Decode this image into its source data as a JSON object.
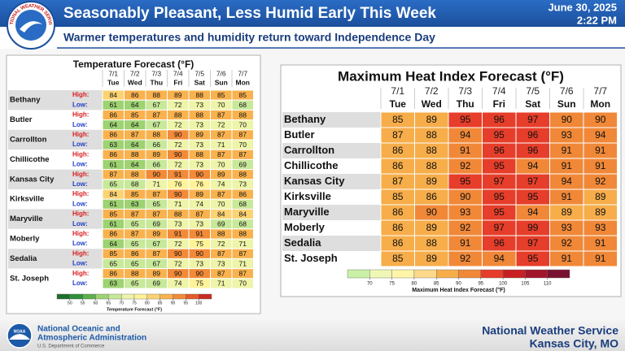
{
  "header": {
    "title": "Seasonably Pleasant, Less Humid Early This Week",
    "subtitle": "Warmer temperatures and humidity return toward Independence Day",
    "date": "June 30, 2025",
    "time": "2:22 PM",
    "logo_text": "NATIONAL WEATHER SERVICE"
  },
  "footer": {
    "noaa_logo": "NOAA",
    "agency_line1": "National Oceanic and",
    "agency_line2": "Atmospheric Administration",
    "department": "U.S. Department of Commerce",
    "office_line1": "National Weather Service",
    "office_line2": "Kansas City, MO"
  },
  "chart_data": [
    {
      "type": "table",
      "title": "Temperature Forecast (°F)",
      "dates": [
        "7/1",
        "7/2",
        "7/3",
        "7/4",
        "7/5",
        "7/6",
        "7/7"
      ],
      "days": [
        "Tue",
        "Wed",
        "Thu",
        "Fri",
        "Sat",
        "Sun",
        "Mon"
      ],
      "row_labels": [
        "High:",
        "Low:"
      ],
      "row_label_colors": [
        "#d81e1e",
        "#1e3cc8"
      ],
      "rows": [
        {
          "name": "Bethany",
          "values": [
            [
              84,
              86,
              88,
              89,
              88,
              85,
              85
            ],
            [
              61,
              64,
              67,
              72,
              73,
              70,
              68
            ]
          ]
        },
        {
          "name": "Butler",
          "values": [
            [
              86,
              85,
              87,
              88,
              88,
              87,
              88
            ],
            [
              64,
              64,
              67,
              72,
              73,
              72,
              70
            ]
          ]
        },
        {
          "name": "Carrollton",
          "values": [
            [
              86,
              87,
              88,
              90,
              89,
              87,
              87
            ],
            [
              63,
              64,
              66,
              72,
              73,
              71,
              70
            ]
          ]
        },
        {
          "name": "Chillicothe",
          "values": [
            [
              86,
              88,
              89,
              90,
              88,
              87,
              87
            ],
            [
              61,
              64,
              66,
              72,
              73,
              70,
              69
            ]
          ]
        },
        {
          "name": "Kansas City",
          "values": [
            [
              87,
              88,
              90,
              91,
              90,
              89,
              88
            ],
            [
              65,
              68,
              71,
              76,
              76,
              74,
              73
            ]
          ]
        },
        {
          "name": "Kirksville",
          "values": [
            [
              84,
              85,
              87,
              90,
              89,
              87,
              86
            ],
            [
              61,
              63,
              65,
              71,
              74,
              70,
              68
            ]
          ]
        },
        {
          "name": "Maryville",
          "values": [
            [
              85,
              87,
              87,
              88,
              87,
              84,
              84
            ],
            [
              61,
              65,
              69,
              73,
              73,
              69,
              68
            ]
          ]
        },
        {
          "name": "Moberly",
          "values": [
            [
              86,
              87,
              89,
              91,
              91,
              88,
              88
            ],
            [
              64,
              65,
              67,
              72,
              75,
              72,
              71
            ]
          ]
        },
        {
          "name": "Sedalia",
          "values": [
            [
              85,
              86,
              87,
              90,
              90,
              87,
              87
            ],
            [
              65,
              65,
              67,
              72,
              73,
              73,
              71
            ]
          ]
        },
        {
          "name": "St. Joseph",
          "values": [
            [
              86,
              88,
              89,
              90,
              90,
              87,
              87
            ],
            [
              63,
              65,
              69,
              74,
              75,
              71,
              70
            ]
          ]
        }
      ],
      "colorbar": {
        "label": "Temperature Forecast (°F)",
        "ticks": [
          50,
          55,
          60,
          65,
          70,
          75,
          80,
          85,
          90,
          95,
          100
        ],
        "colors": [
          "#1b6e2a",
          "#2f8f3a",
          "#5cb04a",
          "#9ed272",
          "#c8e89a",
          "#eef4a8",
          "#fff39a",
          "#fcd373",
          "#f9b24e",
          "#f28a38",
          "#e55a2a",
          "#c92a22"
        ]
      }
    },
    {
      "type": "table",
      "title": "Maximum Heat Index Forecast (°F)",
      "dates": [
        "7/1",
        "7/2",
        "7/3",
        "7/4",
        "7/5",
        "7/6",
        "7/7"
      ],
      "days": [
        "Tue",
        "Wed",
        "Thu",
        "Fri",
        "Sat",
        "Sun",
        "Mon"
      ],
      "rows": [
        {
          "name": "Bethany",
          "values": [
            85,
            89,
            95,
            96,
            97,
            90,
            90
          ]
        },
        {
          "name": "Butler",
          "values": [
            87,
            88,
            94,
            95,
            96,
            93,
            94
          ]
        },
        {
          "name": "Carrollton",
          "values": [
            86,
            88,
            91,
            96,
            96,
            91,
            91
          ]
        },
        {
          "name": "Chillicothe",
          "values": [
            86,
            88,
            92,
            95,
            94,
            91,
            91
          ]
        },
        {
          "name": "Kansas City",
          "values": [
            87,
            89,
            95,
            97,
            97,
            94,
            92
          ]
        },
        {
          "name": "Kirksville",
          "values": [
            85,
            86,
            90,
            95,
            95,
            91,
            89
          ]
        },
        {
          "name": "Maryville",
          "values": [
            86,
            90,
            93,
            95,
            94,
            89,
            89
          ]
        },
        {
          "name": "Moberly",
          "values": [
            86,
            89,
            92,
            97,
            99,
            93,
            93
          ]
        },
        {
          "name": "Sedalia",
          "values": [
            86,
            88,
            91,
            96,
            97,
            92,
            91
          ]
        },
        {
          "name": "St. Joseph",
          "values": [
            85,
            89,
            92,
            94,
            95,
            91,
            91
          ]
        }
      ],
      "colorbar": {
        "label": "Maximum Heat Index Forecast (°F)",
        "ticks": [
          70,
          75,
          80,
          85,
          90,
          95,
          100,
          105,
          110
        ],
        "colors": [
          "#c9f0a6",
          "#eef7b4",
          "#fff4a8",
          "#fcd98a",
          "#f6ad4a",
          "#f08838",
          "#e63e2a",
          "#c81f24",
          "#a3152a",
          "#7a1030"
        ]
      }
    }
  ]
}
